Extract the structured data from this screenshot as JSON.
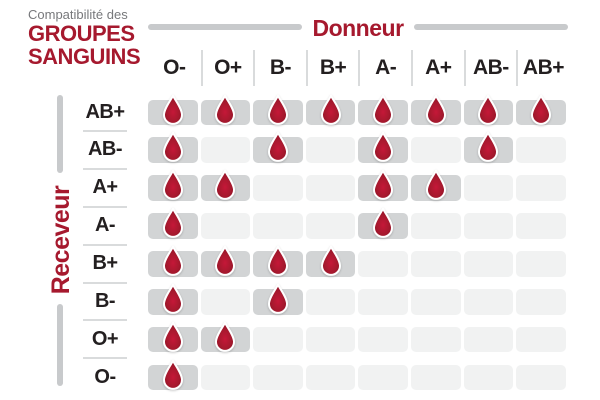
{
  "title": {
    "eyebrow": "Compatibilité des",
    "line1": "GROUPES",
    "line2": "SANGUINS"
  },
  "axes": {
    "donor": "Donneur",
    "receiver": "Receveur"
  },
  "icons": {
    "compatible_marker": "blood-drop-icon"
  },
  "colors": {
    "accent_red": "#A6192E",
    "title_gray": "#77787B",
    "bar_gray": "#C8CACC",
    "separator_gray": "#D9DBDC",
    "cell_filled": "#D2D4D5",
    "cell_empty": "#F1F2F2",
    "label_dark": "#231F20",
    "drop_red_light": "#C51838",
    "drop_red_mid": "#A6192E",
    "drop_red_dark": "#8A0E22",
    "drop_outline": "#FFFFFF"
  },
  "chart_data": {
    "type": "heatmap",
    "title": "Compatibilité des GROUPES SANGUINS",
    "x_axis_label": "Donneur",
    "y_axis_label": "Receveur",
    "columns": [
      "O-",
      "O+",
      "B-",
      "B+",
      "A-",
      "A+",
      "AB-",
      "AB+"
    ],
    "rows": [
      "AB+",
      "AB-",
      "A+",
      "A-",
      "B+",
      "B-",
      "O+",
      "O-"
    ],
    "cell_values": "1 = compatible (blood drop shown), 0 = not compatible (empty cell)",
    "matrix": [
      [
        1,
        1,
        1,
        1,
        1,
        1,
        1,
        1
      ],
      [
        1,
        0,
        1,
        0,
        1,
        0,
        1,
        0
      ],
      [
        1,
        1,
        0,
        0,
        1,
        1,
        0,
        0
      ],
      [
        1,
        0,
        0,
        0,
        1,
        0,
        0,
        0
      ],
      [
        1,
        1,
        1,
        1,
        0,
        0,
        0,
        0
      ],
      [
        1,
        0,
        1,
        0,
        0,
        0,
        0,
        0
      ],
      [
        1,
        1,
        0,
        0,
        0,
        0,
        0,
        0
      ],
      [
        1,
        0,
        0,
        0,
        0,
        0,
        0,
        0
      ]
    ]
  }
}
